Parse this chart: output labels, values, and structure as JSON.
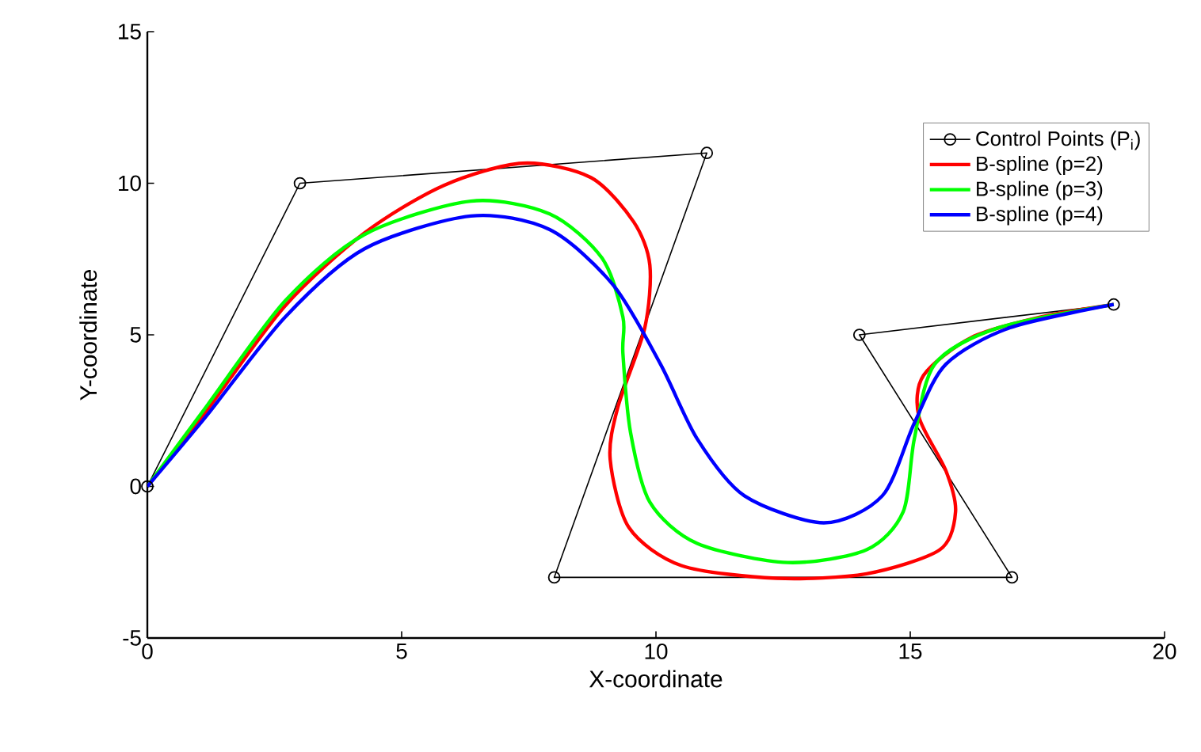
{
  "chart_data": {
    "type": "line",
    "xlabel": "X-coordinate",
    "ylabel": "Y-coordinate",
    "xlim": [
      0,
      20
    ],
    "xticks": [
      0,
      5,
      10,
      15,
      20
    ],
    "ylim": [
      -5,
      15
    ],
    "yticks": [
      -5,
      0,
      5,
      10,
      15
    ],
    "grid": false,
    "legend": "top right",
    "series": [
      {
        "name": "Control Points (P$_{i}$)",
        "color": "#000000",
        "marker": "circle",
        "x": [
          0,
          3,
          11,
          8,
          17,
          14,
          19
        ],
        "values": [
          0,
          10,
          11,
          -3,
          -3,
          5,
          6
        ]
      },
      {
        "name": "B-spline (p=2)",
        "color": "#ff0000",
        "marker": "none",
        "x": [
          0,
          1.15,
          2.71,
          4.27,
          5.83,
          7.38,
          8.72,
          9.56,
          9.88,
          9.78,
          9.25,
          9.1,
          9.47,
          10.5,
          12.37,
          14.14,
          15.58,
          15.89,
          15.7,
          15.17,
          15.26,
          16.2,
          17.57,
          19
        ],
        "values": [
          0,
          2.46,
          5.96,
          8.36,
          9.93,
          10.66,
          10.19,
          8.73,
          7.3,
          5.23,
          2.61,
          0.89,
          -1.36,
          -2.61,
          -3.03,
          -2.88,
          -2.09,
          -0.84,
          0.52,
          2.3,
          3.66,
          4.91,
          5.59,
          6
        ]
      },
      {
        "name": "B-spline (p=3)",
        "color": "#00ff00",
        "marker": "none",
        "x": [
          0,
          1.15,
          2.71,
          4.27,
          6.36,
          7.91,
          8.94,
          9.35,
          9.35,
          9.5,
          9.88,
          10.81,
          12.59,
          14.14,
          14.86,
          15.08,
          15.48,
          16.73,
          19
        ],
        "values": [
          0,
          2.61,
          6.12,
          8.31,
          9.41,
          8.99,
          7.53,
          5.59,
          4.39,
          1.78,
          -0.52,
          -1.88,
          -2.51,
          -2.09,
          -0.84,
          1.57,
          4.03,
          5.23,
          6
        ]
      },
      {
        "name": "B-spline (p=4)",
        "color": "#0000ff",
        "marker": "none",
        "x": [
          0,
          1.15,
          2.71,
          4.27,
          6.36,
          7.91,
          9.16,
          10.09,
          10.81,
          11.74,
          13.3,
          14.45,
          15.08,
          15.7,
          16.95,
          19
        ],
        "values": [
          0,
          2.3,
          5.59,
          7.84,
          8.92,
          8.47,
          6.64,
          4.03,
          1.57,
          -0.31,
          -1.2,
          -0.31,
          2.09,
          4.03,
          5.23,
          6
        ]
      }
    ]
  }
}
